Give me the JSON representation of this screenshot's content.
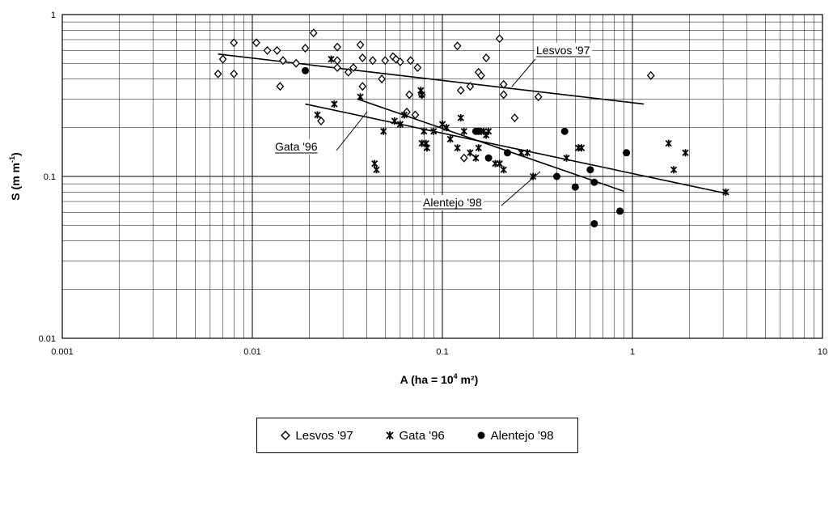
{
  "chart_data": {
    "type": "scatter",
    "title": "",
    "xlabel": {
      "base": "A (ha = 10",
      "sup": "4",
      "rest": " m²)"
    },
    "ylabel": {
      "base": "S (m m",
      "sup": "-1",
      "rest": ")"
    },
    "xscale": "log",
    "yscale": "log",
    "xlim": [
      0.001,
      10
    ],
    "ylim": [
      0.01,
      1
    ],
    "xticklabels": [
      "0.001",
      "0.01",
      "0.1",
      "1",
      "10"
    ],
    "yticklabels": [
      "0.01",
      "0.1",
      "1"
    ],
    "grid": true,
    "legend_position": "bottom",
    "series": [
      {
        "name": "Lesvos '97",
        "marker": "diamond-open",
        "points": [
          [
            0.0066,
            0.43
          ],
          [
            0.007,
            0.53
          ],
          [
            0.008,
            0.67
          ],
          [
            0.008,
            0.43
          ],
          [
            0.0105,
            0.67
          ],
          [
            0.012,
            0.6
          ],
          [
            0.0135,
            0.6
          ],
          [
            0.014,
            0.36
          ],
          [
            0.0145,
            0.52
          ],
          [
            0.017,
            0.5
          ],
          [
            0.019,
            0.62
          ],
          [
            0.021,
            0.77
          ],
          [
            0.023,
            0.22
          ],
          [
            0.028,
            0.63
          ],
          [
            0.028,
            0.52
          ],
          [
            0.028,
            0.47
          ],
          [
            0.032,
            0.44
          ],
          [
            0.034,
            0.47
          ],
          [
            0.037,
            0.65
          ],
          [
            0.038,
            0.54
          ],
          [
            0.038,
            0.36
          ],
          [
            0.043,
            0.52
          ],
          [
            0.048,
            0.4
          ],
          [
            0.05,
            0.52
          ],
          [
            0.055,
            0.55
          ],
          [
            0.057,
            0.53
          ],
          [
            0.06,
            0.51
          ],
          [
            0.065,
            0.25
          ],
          [
            0.067,
            0.32
          ],
          [
            0.068,
            0.52
          ],
          [
            0.072,
            0.24
          ],
          [
            0.074,
            0.47
          ],
          [
            0.078,
            0.32
          ],
          [
            0.12,
            0.64
          ],
          [
            0.125,
            0.34
          ],
          [
            0.13,
            0.13
          ],
          [
            0.14,
            0.36
          ],
          [
            0.155,
            0.44
          ],
          [
            0.16,
            0.42
          ],
          [
            0.17,
            0.54
          ],
          [
            0.2,
            0.71
          ],
          [
            0.21,
            0.37
          ],
          [
            0.21,
            0.32
          ],
          [
            0.24,
            0.23
          ],
          [
            0.32,
            0.31
          ],
          [
            1.25,
            0.42
          ]
        ]
      },
      {
        "name": "Gata '96",
        "marker": "star",
        "points": [
          [
            0.022,
            0.24
          ],
          [
            0.026,
            0.53
          ],
          [
            0.027,
            0.28
          ],
          [
            0.037,
            0.31
          ],
          [
            0.044,
            0.12
          ],
          [
            0.045,
            0.11
          ],
          [
            0.049,
            0.19
          ],
          [
            0.056,
            0.22
          ],
          [
            0.06,
            0.21
          ],
          [
            0.063,
            0.24
          ],
          [
            0.077,
            0.34
          ],
          [
            0.078,
            0.32
          ],
          [
            0.078,
            0.16
          ],
          [
            0.08,
            0.19
          ],
          [
            0.082,
            0.16
          ],
          [
            0.083,
            0.15
          ],
          [
            0.09,
            0.19
          ],
          [
            0.1,
            0.21
          ],
          [
            0.105,
            0.2
          ],
          [
            0.11,
            0.17
          ],
          [
            0.12,
            0.15
          ],
          [
            0.125,
            0.23
          ],
          [
            0.13,
            0.19
          ],
          [
            0.14,
            0.14
          ],
          [
            0.15,
            0.13
          ],
          [
            0.155,
            0.15
          ],
          [
            0.16,
            0.19
          ],
          [
            0.165,
            0.19
          ],
          [
            0.17,
            0.18
          ],
          [
            0.175,
            0.19
          ],
          [
            0.19,
            0.12
          ],
          [
            0.2,
            0.12
          ],
          [
            0.21,
            0.11
          ],
          [
            0.26,
            0.14
          ],
          [
            0.28,
            0.14
          ],
          [
            0.3,
            0.1
          ],
          [
            0.45,
            0.13
          ],
          [
            0.52,
            0.15
          ],
          [
            0.54,
            0.15
          ],
          [
            1.55,
            0.16
          ],
          [
            1.65,
            0.11
          ],
          [
            1.9,
            0.14
          ],
          [
            3.1,
            0.08
          ]
        ]
      },
      {
        "name": "Alentejo '98",
        "marker": "circle-filled",
        "points": [
          [
            0.019,
            0.45
          ],
          [
            0.15,
            0.19
          ],
          [
            0.155,
            0.19
          ],
          [
            0.175,
            0.13
          ],
          [
            0.22,
            0.14
          ],
          [
            0.4,
            0.1
          ],
          [
            0.44,
            0.19
          ],
          [
            0.5,
            0.086
          ],
          [
            0.6,
            0.11
          ],
          [
            0.63,
            0.092
          ],
          [
            0.63,
            0.051
          ],
          [
            0.86,
            0.061
          ],
          [
            0.93,
            0.14
          ]
        ]
      }
    ],
    "fit_lines": [
      {
        "series": "Lesvos '97",
        "from": [
          0.0066,
          0.57
        ],
        "to": [
          1.15,
          0.28
        ]
      },
      {
        "series": "Gata '96",
        "from": [
          0.019,
          0.28
        ],
        "to": [
          3.2,
          0.078
        ]
      },
      {
        "series": "Alentejo '98",
        "from": [
          0.036,
          0.3
        ],
        "to": [
          0.9,
          0.081
        ]
      }
    ],
    "annotations": [
      {
        "text": "Lesvos '97"
      },
      {
        "text": "Gata '96"
      },
      {
        "text": "Alentejo '98"
      }
    ]
  }
}
